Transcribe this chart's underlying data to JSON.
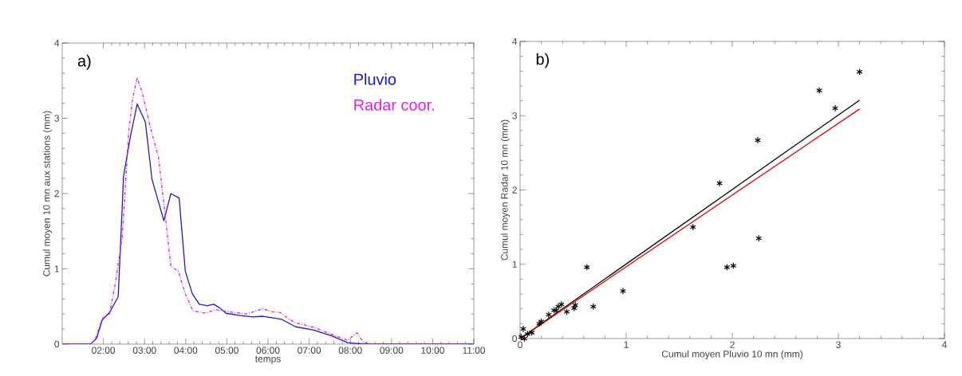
{
  "chart_data": [
    {
      "type": "line",
      "xlabel": "temps",
      "ylabel": "Cumul moyen 10 mn aux stations (mm)",
      "annotations": [
        "a)"
      ],
      "legend": "top right",
      "grid": false,
      "xlim": [
        1,
        11
      ],
      "ylim": [
        0,
        4
      ],
      "xticks": [
        {
          "value": 2,
          "label": "02:00"
        },
        {
          "value": 3,
          "label": "03:00"
        },
        {
          "value": 4,
          "label": "04:00"
        },
        {
          "value": 5,
          "label": "05:00"
        },
        {
          "value": 6,
          "label": "06:00"
        },
        {
          "value": 7,
          "label": "07:00"
        },
        {
          "value": 8,
          "label": "08:00"
        },
        {
          "value": 9,
          "label": "09:00"
        },
        {
          "value": 10,
          "label": "10:00"
        },
        {
          "value": 11,
          "label": "11:00"
        }
      ],
      "yticks": [
        0,
        1,
        2,
        3,
        4
      ],
      "series": [
        {
          "name": "Pluvio",
          "color": "#1a1acc",
          "line_style": "solid",
          "x": [
            1,
            1.69,
            1.84,
            1.97,
            2.15,
            2.36,
            2.49,
            2.65,
            2.82,
            3.02,
            3.18,
            3.47,
            3.64,
            3.84,
            3.99,
            4.16,
            4.33,
            4.52,
            4.68,
            4.83,
            4.98,
            5.33,
            5.64,
            5.87,
            6.1,
            6.33,
            6.67,
            7.09,
            7.55,
            7.93,
            8.32,
            11
          ],
          "values": [
            0,
            0,
            0.08,
            0.32,
            0.42,
            0.63,
            2.23,
            2.74,
            3.19,
            2.95,
            2.19,
            1.64,
            2.0,
            1.94,
            0.97,
            0.67,
            0.53,
            0.51,
            0.53,
            0.48,
            0.41,
            0.38,
            0.36,
            0.37,
            0.35,
            0.33,
            0.23,
            0.19,
            0.11,
            0.02,
            0,
            0
          ]
        },
        {
          "name": "Radar coor.",
          "color": "#e020e0",
          "line_style": "dashdot",
          "x": [
            1,
            1.69,
            1.8,
            1.97,
            2.15,
            2.3,
            2.46,
            2.61,
            2.71,
            2.82,
            2.95,
            3.15,
            3.34,
            3.49,
            3.64,
            3.82,
            3.99,
            4.18,
            4.49,
            4.72,
            5.02,
            5.48,
            5.87,
            6.1,
            6.29,
            6.63,
            7.13,
            7.55,
            7.93,
            8.16,
            8.32,
            8.55,
            11
          ],
          "values": [
            0,
            0,
            0.06,
            0.34,
            0.4,
            0.84,
            1.43,
            2.78,
            3.26,
            3.54,
            3.33,
            2.86,
            2.48,
            1.77,
            1.03,
            0.97,
            0.67,
            0.44,
            0.41,
            0.46,
            0.43,
            0.4,
            0.47,
            0.43,
            0.42,
            0.29,
            0.22,
            0.13,
            0.05,
            0.15,
            0.02,
            0,
            0
          ]
        }
      ]
    },
    {
      "type": "scatter",
      "xlabel": "Cumul moyen Pluvio  10 mn (mm)",
      "ylabel": "Cumul moyen Radar 10 mn (mm)",
      "annotations": [
        "b)"
      ],
      "grid": false,
      "xlim": [
        0,
        4
      ],
      "ylim": [
        0,
        4
      ],
      "xticks": [
        0,
        1,
        2,
        3,
        4
      ],
      "yticks": [
        0,
        1,
        2,
        3,
        4
      ],
      "series": [
        {
          "color": "#000000",
          "marker": "cross",
          "x": [
            3.2,
            2.82,
            2.97,
            2.24,
            1.88,
            1.63,
            2.25,
            1.95,
            2.01,
            0.63,
            0.97,
            0.69,
            0.51,
            0.52,
            0.44,
            0.36,
            0.34,
            0.39,
            0.32,
            0.27,
            0.2,
            0.18,
            0.11,
            0.07,
            0.03,
            0.01,
            0.04
          ],
          "values": [
            3.59,
            3.34,
            3.1,
            2.67,
            2.09,
            1.5,
            1.35,
            0.96,
            0.98,
            0.96,
            0.64,
            0.43,
            0.41,
            0.45,
            0.36,
            0.43,
            0.38,
            0.46,
            0.38,
            0.32,
            0.23,
            0.2,
            0.08,
            0.06,
            0.13,
            0.02,
            0
          ]
        },
        {
          "type": "line",
          "marker": "none",
          "color": "#000000",
          "x": [
            0,
            3.2
          ],
          "values": [
            0,
            3.21
          ]
        },
        {
          "type": "line",
          "marker": "none",
          "color": "#e00000",
          "x": [
            0,
            3.2
          ],
          "values": [
            0,
            3.09
          ]
        }
      ]
    }
  ]
}
